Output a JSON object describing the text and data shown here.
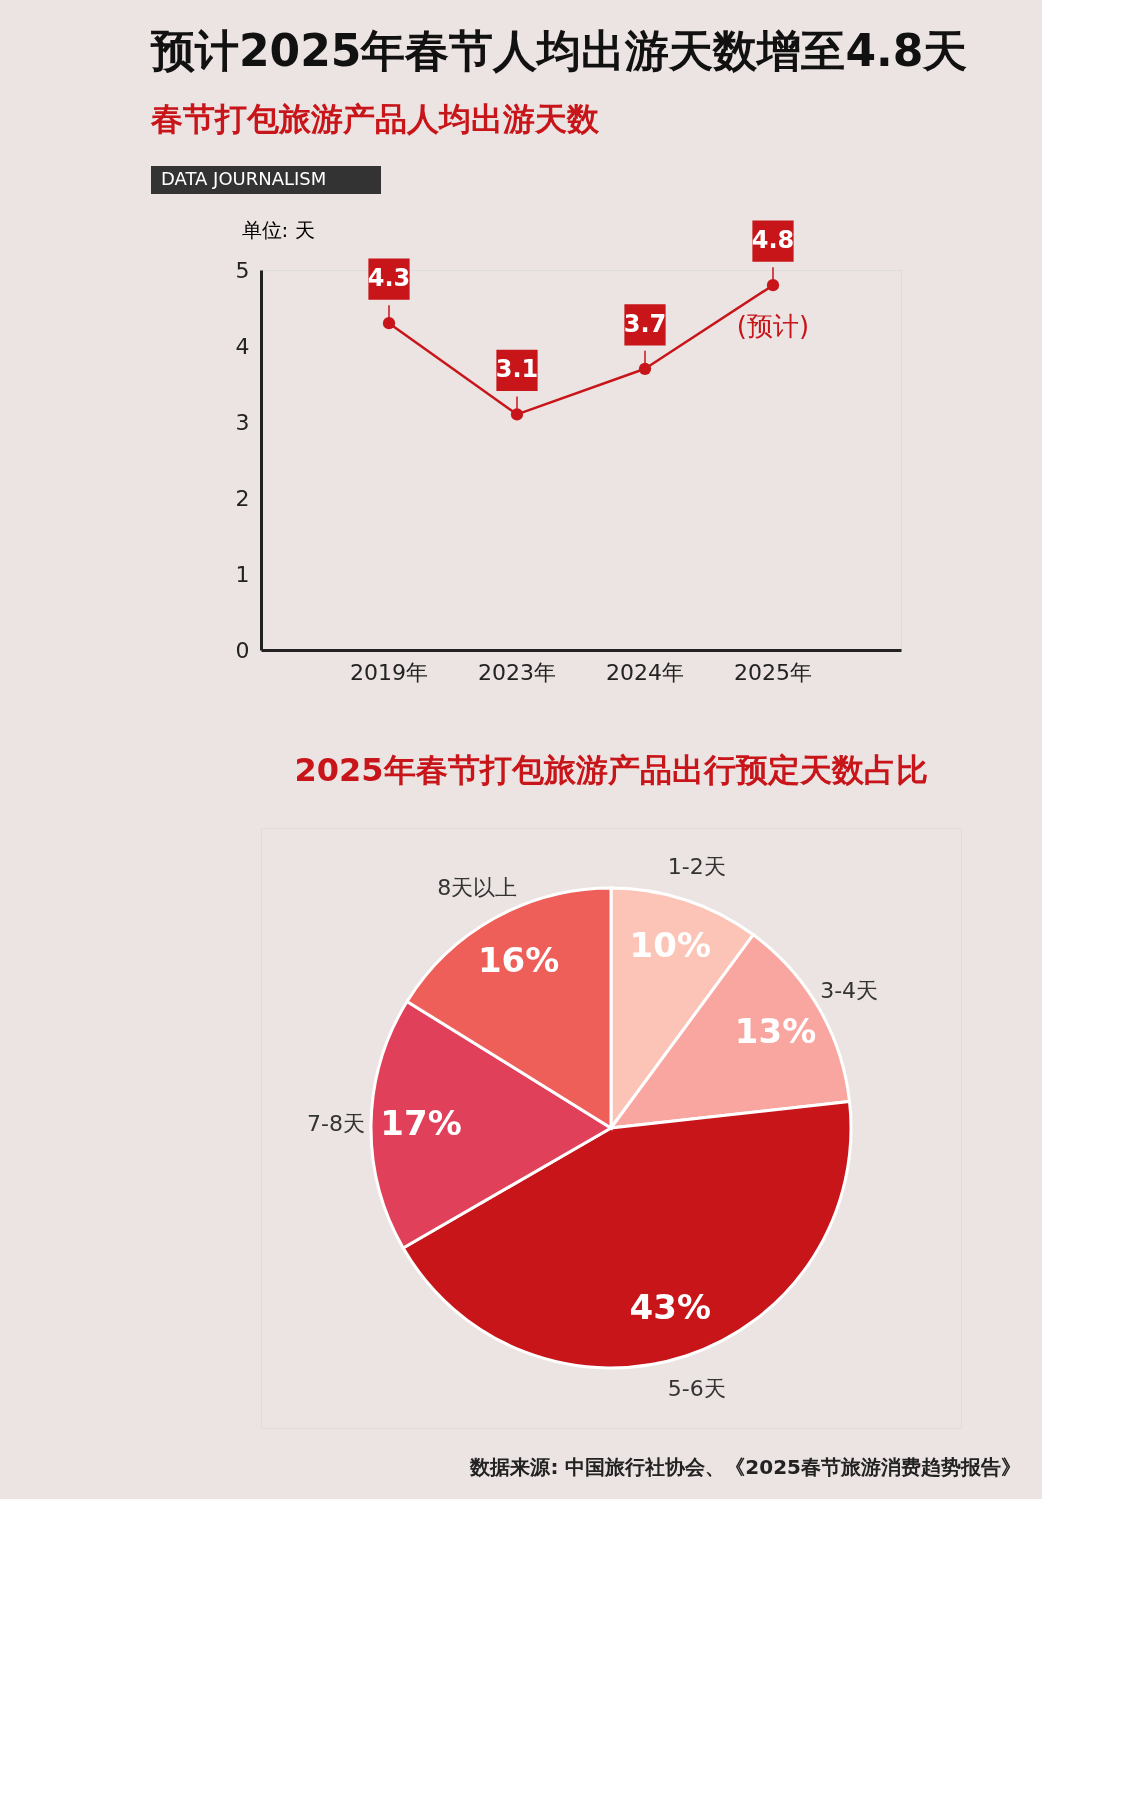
{
  "chart_data": [
    {
      "type": "line",
      "title": "预计2025年春节人均出游天数增至4.8天",
      "subtitle": "春节打包旅游产品人均出游天数",
      "ylabel": "单位: 天",
      "categories": [
        "2019年",
        "2023年",
        "2024年",
        "2025年"
      ],
      "series": [
        {
          "color": "#c8151a",
          "values": [
            4.3,
            3.1,
            3.7,
            4.8
          ]
        }
      ],
      "ylim": [
        0,
        5
      ],
      "yticks": [
        0,
        1,
        2,
        3,
        4,
        5
      ],
      "grid": false,
      "marker": "circle",
      "data_labels": true,
      "annotations": [
        "DATA JOURNALISM",
        {
          "text": "(预计)",
          "x": "2025年",
          "y": 4.8
        }
      ]
    },
    {
      "type": "pie",
      "title": "2025年春节打包旅游产品出行预定天数占比",
      "categories": [
        "1-2天",
        "3-4天",
        "5-6天",
        "7-8天",
        "8天以上"
      ],
      "values": [
        10,
        13,
        43,
        17,
        16
      ],
      "colors": [
        "#fbc4b6",
        "#f9a5a0",
        "#c8151a",
        "#e0405a",
        "#ef5f5a"
      ],
      "value_labels": [
        "10%",
        "13%",
        "43%",
        "17%",
        "16%"
      ],
      "annotations": [
        "数据来源: 中国旅行社协会、《2025春节旅游消费趋势报告》"
      ]
    }
  ]
}
